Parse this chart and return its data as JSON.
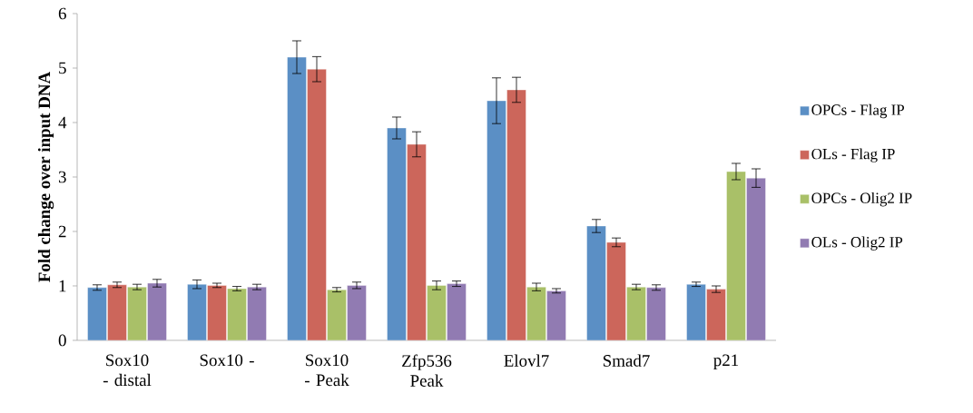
{
  "chart_data": {
    "type": "bar",
    "ylabel": "Fold change over input DNA",
    "categories": [
      "Sox10 - distal",
      "Sox10 -",
      "Sox10 - Peak",
      "Zfp536 Peak",
      "Elovl7",
      "Smad7",
      "p21"
    ],
    "series": [
      {
        "name": "OPCs - Flag IP",
        "color": "#5b8fc5",
        "values": [
          0.97,
          1.03,
          5.2,
          3.9,
          4.4,
          2.1,
          1.03
        ],
        "errors": [
          0.05,
          0.08,
          0.3,
          0.2,
          0.42,
          0.12,
          0.04
        ]
      },
      {
        "name": "OLs - Flag IP",
        "color": "#cc665b",
        "values": [
          1.02,
          1.01,
          4.98,
          3.6,
          4.6,
          1.8,
          0.94
        ],
        "errors": [
          0.05,
          0.04,
          0.23,
          0.23,
          0.23,
          0.08,
          0.06
        ]
      },
      {
        "name": "OPCs - Olig2 IP",
        "color": "#a9c068",
        "values": [
          0.98,
          0.95,
          0.93,
          1.01,
          0.98,
          0.98,
          3.1
        ],
        "errors": [
          0.05,
          0.04,
          0.04,
          0.08,
          0.07,
          0.05,
          0.15
        ]
      },
      {
        "name": "OLs - Olig2 IP",
        "color": "#917bb2",
        "values": [
          1.05,
          0.98,
          1.01,
          1.04,
          0.91,
          0.97,
          2.98
        ],
        "errors": [
          0.07,
          0.05,
          0.06,
          0.05,
          0.04,
          0.05,
          0.17
        ]
      }
    ],
    "ylim": [
      0,
      6
    ],
    "yticks": [
      0,
      1,
      2,
      3,
      4,
      5,
      6
    ],
    "legend": "right"
  }
}
